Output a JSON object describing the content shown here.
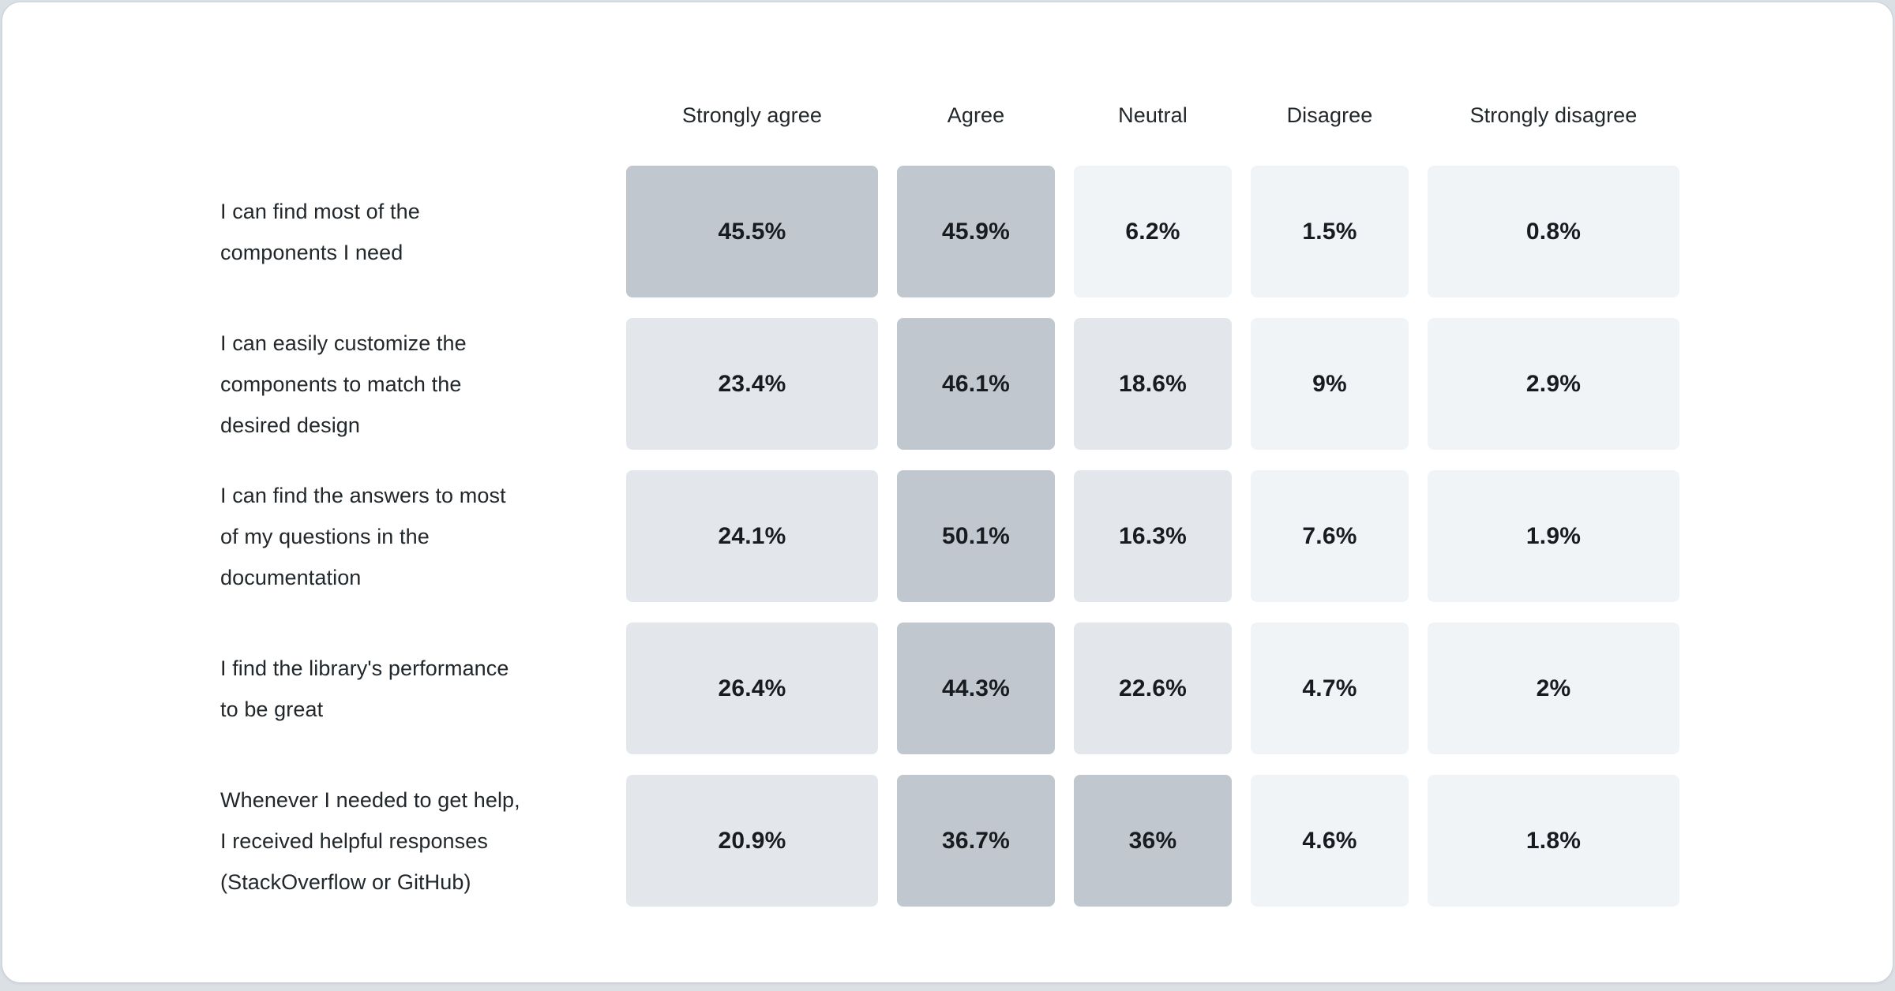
{
  "page": {
    "background_color": "#dbe0e5",
    "card_background_color": "#ffffff",
    "card_border_color": "#ccd3d9",
    "text_color": "#21272a",
    "value_text_color": "#181c20"
  },
  "chart_data": {
    "type": "heatmap",
    "title": "",
    "legend_position": "none",
    "grid": "off",
    "columns": [
      "Strongly agree",
      "Agree",
      "Neutral",
      "Disagree",
      "Strongly disagree"
    ],
    "rows": [
      {
        "label": "I can find most of the components I need",
        "label_lines": [
          "I can find most of the",
          "components I need"
        ],
        "values": [
          45.5,
          45.9,
          6.2,
          1.5,
          0.8
        ],
        "display": [
          "45.5%",
          "45.9%",
          "6.2%",
          "1.5%",
          "0.8%"
        ]
      },
      {
        "label": "I can easily customize the components to match the desired design",
        "label_lines": [
          "I can easily customize the",
          "components to match the",
          "desired design"
        ],
        "values": [
          23.4,
          46.1,
          18.6,
          9,
          2.9
        ],
        "display": [
          "23.4%",
          "46.1%",
          "18.6%",
          "9%",
          "2.9%"
        ]
      },
      {
        "label": "I can find the answers to most of my questions in the documentation",
        "label_lines": [
          "I can find the answers to most",
          "of my questions in the",
          "documentation"
        ],
        "values": [
          24.1,
          50.1,
          16.3,
          7.6,
          1.9
        ],
        "display": [
          "24.1%",
          "50.1%",
          "16.3%",
          "7.6%",
          "1.9%"
        ]
      },
      {
        "label": "I find the library's performance to be great",
        "label_lines": [
          "I find the library's performance",
          "to be great"
        ],
        "values": [
          26.4,
          44.3,
          22.6,
          4.7,
          2
        ],
        "display": [
          "26.4%",
          "44.3%",
          "22.6%",
          "4.7%",
          "2%"
        ]
      },
      {
        "label": "Whenever I needed to get help, I received helpful responses (StackOverflow or GitHub)",
        "label_lines": [
          "Whenever I needed to get help,",
          "I received helpful responses",
          "(StackOverflow or GitHub)"
        ],
        "values": [
          20.9,
          36.7,
          36,
          4.6,
          1.8
        ],
        "display": [
          "20.9%",
          "36.7%",
          "36%",
          "4.6%",
          "1.8%"
        ]
      }
    ],
    "color_scale": {
      "high_color": "#c0c7ce",
      "mid_color": "#e3e7eb",
      "low_color": "#f1f4f7",
      "high_threshold": 30,
      "mid_threshold": 10
    }
  }
}
